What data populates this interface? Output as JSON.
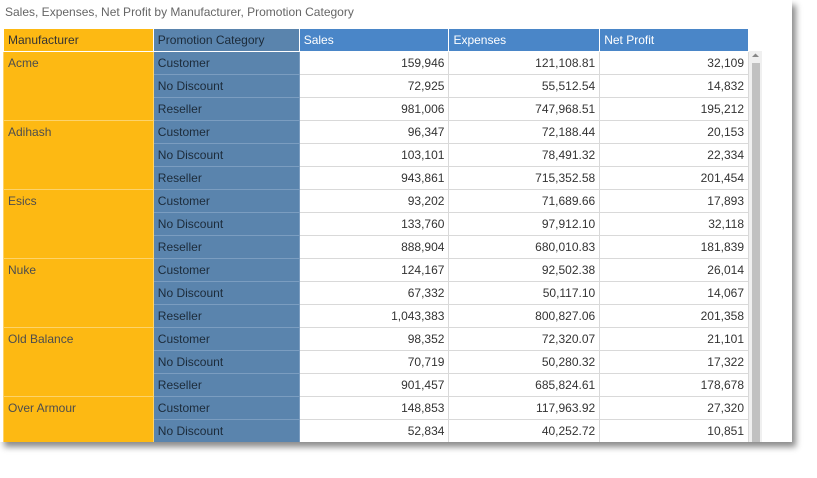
{
  "header": {
    "title": "Sales, Expenses, Net Profit by Manufacturer, Promotion Category"
  },
  "table": {
    "columns": [
      "Manufacturer",
      "Promotion Category",
      "Sales",
      "Expenses",
      "Net Profit"
    ],
    "groups": [
      {
        "manufacturer": "Acme",
        "rows": [
          [
            "Customer",
            "159,946",
            "121,108.81",
            "32,109"
          ],
          [
            "No Discount",
            "72,925",
            "55,512.54",
            "14,832"
          ],
          [
            "Reseller",
            "981,006",
            "747,968.51",
            "195,212"
          ]
        ]
      },
      {
        "manufacturer": "Adihash",
        "rows": [
          [
            "Customer",
            "96,347",
            "72,188.44",
            "20,153"
          ],
          [
            "No Discount",
            "103,101",
            "78,491.32",
            "22,334"
          ],
          [
            "Reseller",
            "943,861",
            "715,352.58",
            "201,454"
          ]
        ]
      },
      {
        "manufacturer": "Esics",
        "rows": [
          [
            "Customer",
            "93,202",
            "71,689.66",
            "17,893"
          ],
          [
            "No Discount",
            "133,760",
            "97,912.10",
            "32,118"
          ],
          [
            "Reseller",
            "888,904",
            "680,010.83",
            "181,839"
          ]
        ]
      },
      {
        "manufacturer": "Nuke",
        "rows": [
          [
            "Customer",
            "124,167",
            "92,502.38",
            "26,014"
          ],
          [
            "No Discount",
            "67,332",
            "50,117.10",
            "14,067"
          ],
          [
            "Reseller",
            "1,043,383",
            "800,827.06",
            "201,358"
          ]
        ]
      },
      {
        "manufacturer": "Old Balance",
        "rows": [
          [
            "Customer",
            "98,352",
            "72,320.07",
            "21,101"
          ],
          [
            "No Discount",
            "70,719",
            "50,280.32",
            "17,322"
          ],
          [
            "Reseller",
            "901,457",
            "685,824.61",
            "178,678"
          ]
        ]
      },
      {
        "manufacturer": "Over Armour",
        "rows": [
          [
            "Customer",
            "148,853",
            "117,963.92",
            "27,320"
          ],
          [
            "No Discount",
            "52,834",
            "40,252.72",
            "10,851"
          ]
        ]
      }
    ]
  }
}
